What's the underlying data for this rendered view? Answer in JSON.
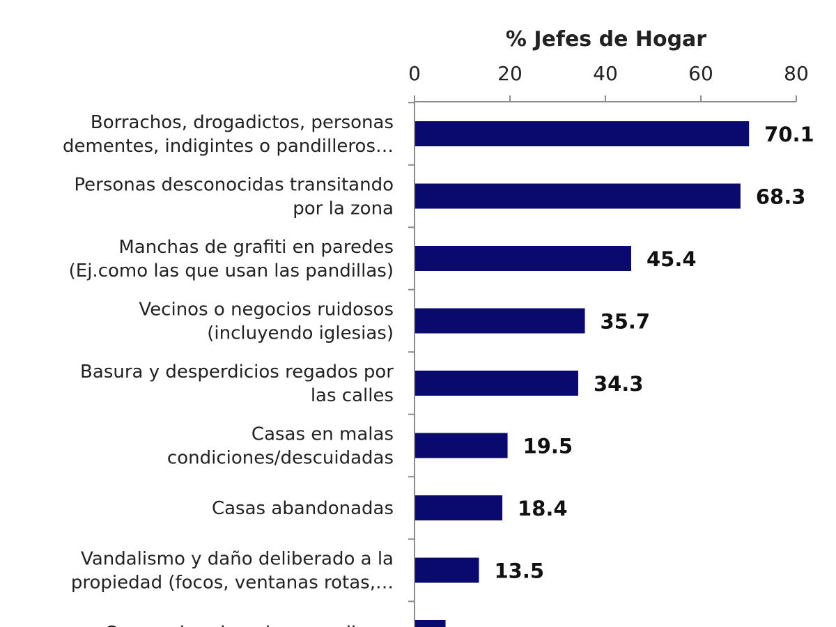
{
  "chart_data": {
    "type": "bar",
    "orientation": "horizontal",
    "title": "",
    "xlabel": "% Jefes de Hogar",
    "ylabel": "",
    "xlim": [
      0,
      80
    ],
    "x_ticks": [
      0,
      20,
      40,
      60,
      80
    ],
    "x_axis_position": "top",
    "grid": false,
    "bar_color": "#0a0a6e",
    "categories": [
      [
        "Borrachos, drogadictos, personas",
        "dementes, indigintes o pandilleros…"
      ],
      [
        "Personas desconocidas transitando",
        "por la zona"
      ],
      [
        "Manchas de grafiti en paredes",
        "(Ej.como las que usan las pandillas)"
      ],
      [
        "Vecinos o negocios ruidosos",
        "(incluyendo iglesias)"
      ],
      [
        "Basura y desperdicios regados por",
        "las calles"
      ],
      [
        "Casas en malas",
        "condiciones/descuidadas"
      ],
      [
        "Casas abandonadas"
      ],
      [
        "Vandalismo y daño deliberado a la",
        "propiedad (focos, ventanas rotas,…"
      ],
      [
        "Carros abandonados en calles o"
      ]
    ],
    "values": [
      70.1,
      68.3,
      45.4,
      35.7,
      34.3,
      19.5,
      18.4,
      13.5,
      6.5
    ],
    "value_labels": [
      "70.1",
      "68.3",
      "45.4",
      "35.7",
      "34.3",
      "19.5",
      "18.4",
      "13.5",
      ""
    ]
  }
}
